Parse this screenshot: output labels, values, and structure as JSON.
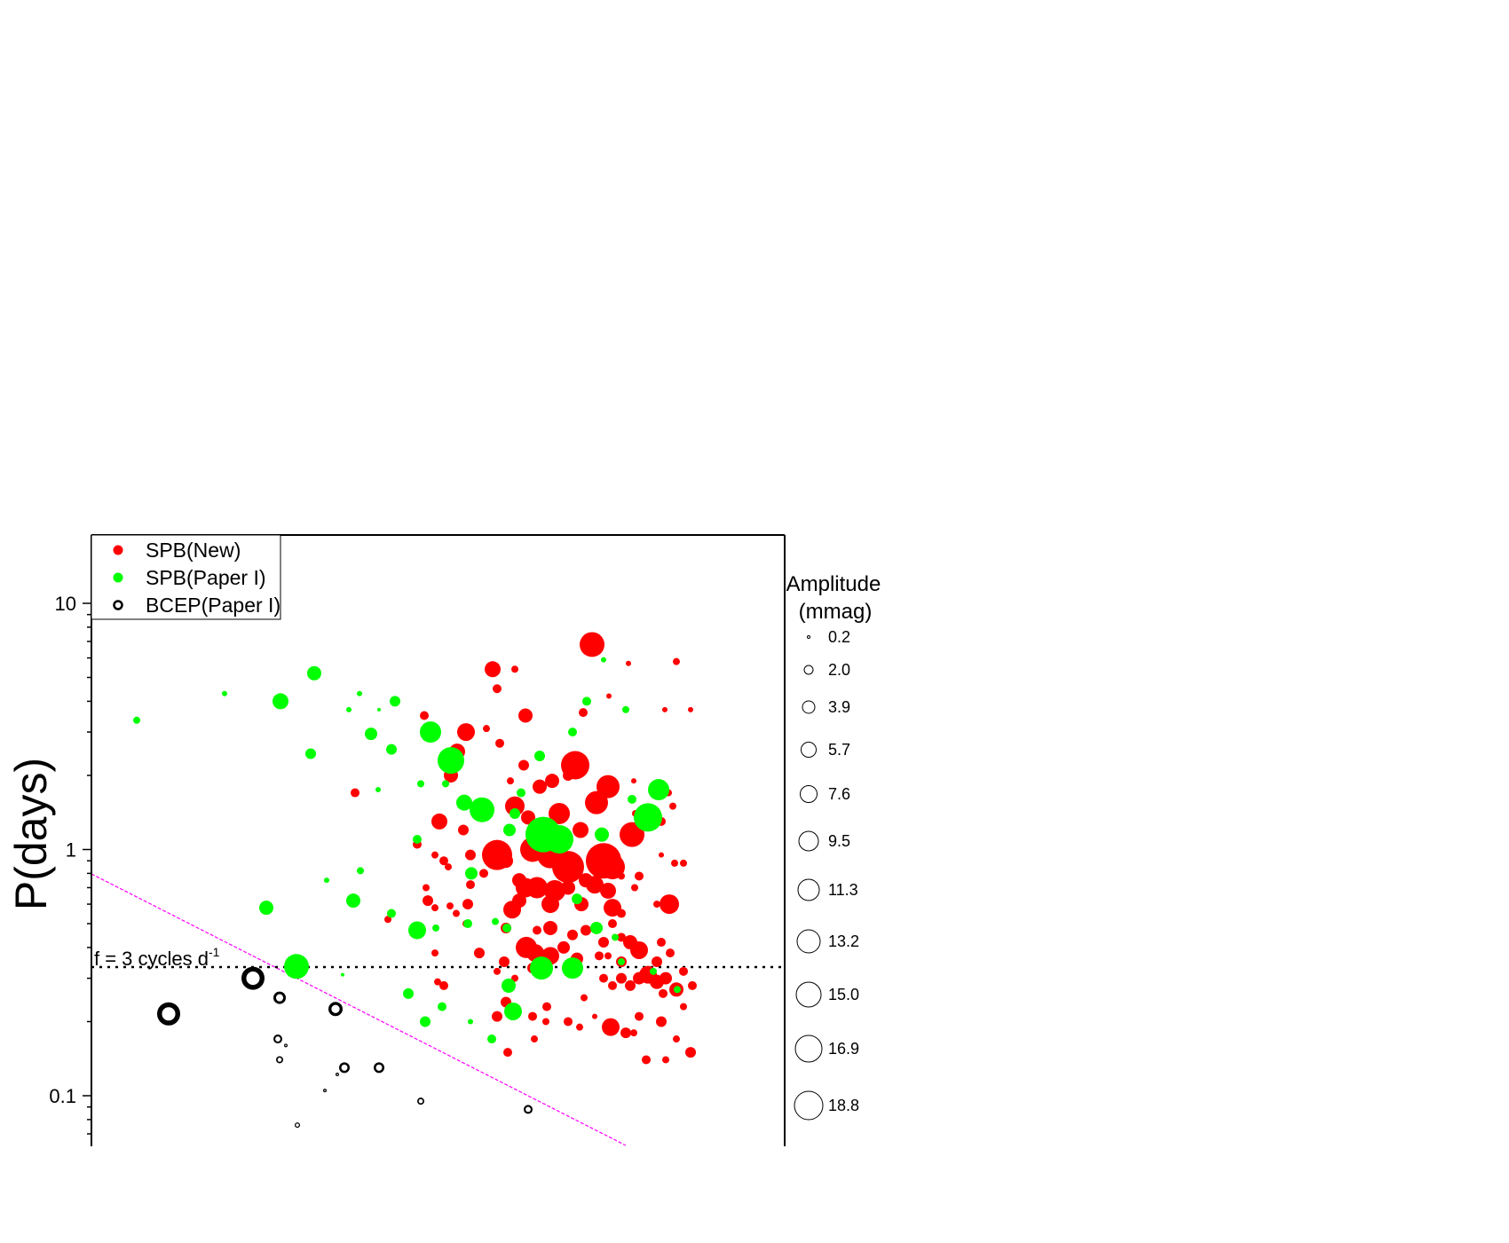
{
  "chart_data": {
    "type": "scatter",
    "title": "",
    "xlabel": "",
    "ylabel": "P(days)",
    "y_scale": "log",
    "ylim": [
      0.0637,
      20
    ],
    "y_ticks": [
      {
        "value": 10,
        "label": "10"
      },
      {
        "value": 1,
        "label": "1"
      },
      {
        "value": 0.1,
        "label": "0.1"
      }
    ],
    "grid": false,
    "legend_position": "top-left",
    "colors": {
      "spb_new": "#ff0000",
      "spb_paper1": "#00ff00",
      "bcep": "#000000",
      "cutoff_line": "#ff00ff"
    },
    "annotation": {
      "text": "f = 3 cycles d",
      "superscript": "-1",
      "line_period": 0.333
    },
    "size_legend": {
      "title_line1": "Amplitude",
      "title_line2": "(mmag)",
      "labels": [
        "0.2",
        "2.0",
        "3.9",
        "5.7",
        "7.6",
        "9.5",
        "11.3",
        "13.2",
        "15.0",
        "16.9",
        "18.8"
      ]
    },
    "series": [
      {
        "name": "SPB(New)",
        "style": "filled",
        "points": [
          [
            667,
            6.8,
            14
          ],
          [
            555,
            5.4,
            9
          ],
          [
            580,
            5.4,
            4
          ],
          [
            708,
            5.7,
            3
          ],
          [
            762,
            5.8,
            4
          ],
          [
            560,
            4.5,
            5
          ],
          [
            686,
            4.2,
            3
          ],
          [
            749,
            3.7,
            3
          ],
          [
            778,
            3.7,
            3
          ],
          [
            657,
            3.6,
            5
          ],
          [
            592,
            3.5,
            8
          ],
          [
            478,
            3.5,
            5
          ],
          [
            525,
            3.0,
            10
          ],
          [
            548,
            3.1,
            4
          ],
          [
            563,
            2.7,
            5
          ],
          [
            648,
            2.2,
            16
          ],
          [
            590,
            2.2,
            6
          ],
          [
            515,
            2.5,
            9
          ],
          [
            508,
            2.0,
            8
          ],
          [
            622,
            1.9,
            8
          ],
          [
            608,
            1.8,
            8
          ],
          [
            685,
            1.8,
            13
          ],
          [
            640,
            2.0,
            6
          ],
          [
            575,
            1.9,
            4
          ],
          [
            714,
            1.9,
            3
          ],
          [
            753,
            1.7,
            4
          ],
          [
            758,
            1.5,
            4
          ],
          [
            400,
            1.7,
            5
          ],
          [
            672,
            1.55,
            13
          ],
          [
            716,
            1.4,
            4
          ],
          [
            580,
            1.5,
            11
          ],
          [
            550,
            1.45,
            4
          ],
          [
            630,
            1.4,
            12
          ],
          [
            595,
            1.35,
            8
          ],
          [
            495,
            1.3,
            9
          ],
          [
            745,
            1.3,
            5
          ],
          [
            712,
            1.15,
            14
          ],
          [
            654,
            1.2,
            9
          ],
          [
            522,
            1.2,
            6
          ],
          [
            600,
            1.0,
            14
          ],
          [
            560,
            0.95,
            17
          ],
          [
            620,
            0.95,
            15
          ],
          [
            640,
            0.85,
            18
          ],
          [
            680,
            0.9,
            20
          ],
          [
            690,
            0.85,
            14
          ],
          [
            570,
            0.9,
            8
          ],
          [
            530,
            0.95,
            6
          ],
          [
            555,
            1.0,
            7
          ],
          [
            470,
            1.05,
            5
          ],
          [
            490,
            0.95,
            4
          ],
          [
            500,
            0.9,
            5
          ],
          [
            505,
            0.85,
            4
          ],
          [
            760,
            0.88,
            4
          ],
          [
            770,
            0.88,
            4
          ],
          [
            745,
            0.95,
            3
          ],
          [
            545,
            0.8,
            5
          ],
          [
            530,
            0.72,
            5
          ],
          [
            585,
            0.75,
            8
          ],
          [
            592,
            0.7,
            11
          ],
          [
            605,
            0.7,
            12
          ],
          [
            625,
            0.68,
            12
          ],
          [
            640,
            0.7,
            8
          ],
          [
            660,
            0.75,
            8
          ],
          [
            670,
            0.72,
            10
          ],
          [
            685,
            0.68,
            9
          ],
          [
            720,
            0.78,
            5
          ],
          [
            715,
            0.7,
            4
          ],
          [
            700,
            0.78,
            4
          ],
          [
            480,
            0.7,
            4
          ],
          [
            482,
            0.62,
            6
          ],
          [
            490,
            0.58,
            4
          ],
          [
            527,
            0.6,
            6
          ],
          [
            577,
            0.57,
            10
          ],
          [
            585,
            0.62,
            8
          ],
          [
            620,
            0.6,
            10
          ],
          [
            655,
            0.6,
            8
          ],
          [
            690,
            0.58,
            10
          ],
          [
            700,
            0.55,
            5
          ],
          [
            740,
            0.6,
            4
          ],
          [
            754,
            0.6,
            11
          ],
          [
            440,
            0.55,
            4
          ],
          [
            437,
            0.52,
            4
          ],
          [
            507,
            0.59,
            4
          ],
          [
            514,
            0.55,
            4
          ],
          [
            525,
            0.5,
            4
          ],
          [
            570,
            0.48,
            6
          ],
          [
            605,
            0.47,
            5
          ],
          [
            620,
            0.48,
            8
          ],
          [
            645,
            0.45,
            6
          ],
          [
            660,
            0.47,
            6
          ],
          [
            680,
            0.42,
            6
          ],
          [
            690,
            0.5,
            5
          ],
          [
            700,
            0.44,
            5
          ],
          [
            710,
            0.42,
            8
          ],
          [
            720,
            0.39,
            10
          ],
          [
            745,
            0.42,
            5
          ],
          [
            593,
            0.4,
            12
          ],
          [
            603,
            0.38,
            10
          ],
          [
            620,
            0.37,
            10
          ],
          [
            635,
            0.4,
            7
          ],
          [
            650,
            0.36,
            7
          ],
          [
            540,
            0.38,
            6
          ],
          [
            568,
            0.35,
            6
          ],
          [
            490,
            0.38,
            4
          ],
          [
            675,
            0.37,
            5
          ],
          [
            685,
            0.37,
            4
          ],
          [
            700,
            0.35,
            6
          ],
          [
            740,
            0.35,
            6
          ],
          [
            755,
            0.38,
            5
          ],
          [
            770,
            0.32,
            5
          ],
          [
            720,
            0.3,
            7
          ],
          [
            730,
            0.31,
            10
          ],
          [
            740,
            0.29,
            8
          ],
          [
            750,
            0.3,
            7
          ],
          [
            700,
            0.3,
            6
          ],
          [
            710,
            0.28,
            6
          ],
          [
            690,
            0.28,
            5
          ],
          [
            680,
            0.3,
            5
          ],
          [
            600,
            0.33,
            6
          ],
          [
            560,
            0.32,
            4
          ],
          [
            580,
            0.3,
            4
          ],
          [
            500,
            0.28,
            5
          ],
          [
            493,
            0.29,
            4
          ],
          [
            780,
            0.28,
            5
          ],
          [
            762,
            0.27,
            8
          ],
          [
            770,
            0.23,
            4
          ],
          [
            747,
            0.26,
            5
          ],
          [
            570,
            0.24,
            6
          ],
          [
            616,
            0.23,
            5
          ],
          [
            600,
            0.21,
            5
          ],
          [
            560,
            0.21,
            6
          ],
          [
            615,
            0.2,
            4
          ],
          [
            640,
            0.2,
            5
          ],
          [
            653,
            0.19,
            4
          ],
          [
            670,
            0.21,
            3
          ],
          [
            688,
            0.19,
            10
          ],
          [
            705,
            0.18,
            6
          ],
          [
            714,
            0.18,
            4
          ],
          [
            720,
            0.21,
            5
          ],
          [
            745,
            0.2,
            6
          ],
          [
            762,
            0.17,
            4
          ],
          [
            778,
            0.15,
            6
          ],
          [
            728,
            0.14,
            5
          ],
          [
            750,
            0.14,
            4
          ],
          [
            572,
            0.15,
            5
          ],
          [
            602,
            0.17,
            4
          ],
          [
            658,
            0.25,
            4
          ]
        ]
      },
      {
        "name": "SPB(Paper I)",
        "style": "filled",
        "points": [
          [
            154,
            3.35,
            4
          ],
          [
            253,
            4.3,
            3
          ],
          [
            354,
            5.2,
            8
          ],
          [
            316,
            4.0,
            9
          ],
          [
            405,
            4.3,
            3
          ],
          [
            393,
            3.7,
            3
          ],
          [
            427,
            3.7,
            2
          ],
          [
            445,
            4.0,
            6
          ],
          [
            418,
            2.95,
            7
          ],
          [
            441,
            2.55,
            6
          ],
          [
            350,
            2.45,
            6
          ],
          [
            485,
            3.0,
            12
          ],
          [
            508,
            2.3,
            15
          ],
          [
            474,
            1.85,
            4
          ],
          [
            426,
            1.75,
            3
          ],
          [
            502,
            1.85,
            4
          ],
          [
            523,
            1.55,
            9
          ],
          [
            543,
            1.45,
            14
          ],
          [
            580,
            1.4,
            6
          ],
          [
            608,
            2.4,
            6
          ],
          [
            612,
            1.15,
            20
          ],
          [
            630,
            1.1,
            16
          ],
          [
            574,
            1.2,
            7
          ],
          [
            587,
            1.7,
            5
          ],
          [
            661,
            4.0,
            5
          ],
          [
            645,
            3.0,
            5
          ],
          [
            680,
            5.9,
            3
          ],
          [
            705,
            3.7,
            4
          ],
          [
            742,
            1.75,
            12
          ],
          [
            730,
            1.35,
            16
          ],
          [
            712,
            1.6,
            5
          ],
          [
            470,
            1.1,
            5
          ],
          [
            678,
            1.15,
            8
          ],
          [
            368,
            0.75,
            3
          ],
          [
            406,
            0.82,
            4
          ],
          [
            531,
            0.8,
            7
          ],
          [
            300,
            0.58,
            8
          ],
          [
            398,
            0.62,
            8
          ],
          [
            441,
            0.55,
            5
          ],
          [
            470,
            0.47,
            10
          ],
          [
            491,
            0.48,
            4
          ],
          [
            527,
            0.5,
            5
          ],
          [
            558,
            0.51,
            4
          ],
          [
            571,
            0.48,
            5
          ],
          [
            650,
            0.63,
            6
          ],
          [
            672,
            0.48,
            7
          ],
          [
            693,
            0.44,
            4
          ],
          [
            334,
            0.335,
            14
          ],
          [
            573,
            0.28,
            8
          ],
          [
            610,
            0.33,
            13
          ],
          [
            645,
            0.33,
            12
          ],
          [
            700,
            0.35,
            4
          ],
          [
            736,
            0.32,
            4
          ],
          [
            763,
            0.27,
            4
          ],
          [
            460,
            0.26,
            6
          ],
          [
            498,
            0.23,
            5
          ],
          [
            578,
            0.22,
            10
          ],
          [
            530,
            0.2,
            3
          ],
          [
            554,
            0.17,
            5
          ],
          [
            479,
            0.2,
            6
          ],
          [
            386,
            0.31,
            2
          ]
        ]
      },
      {
        "name": "BCEP(Paper I)",
        "style": "ring",
        "points": [
          [
            190,
            0.215,
            13
          ],
          [
            285,
            0.3,
            13
          ],
          [
            315,
            0.25,
            7
          ],
          [
            378,
            0.225,
            8
          ],
          [
            313,
            0.17,
            5
          ],
          [
            315,
            0.14,
            4
          ],
          [
            322,
            0.16,
            2
          ],
          [
            388,
            0.13,
            6
          ],
          [
            427,
            0.13,
            6
          ],
          [
            380,
            0.122,
            2
          ],
          [
            366,
            0.105,
            2
          ],
          [
            474,
            0.095,
            4
          ],
          [
            595,
            0.088,
            5
          ],
          [
            335,
            0.076,
            3
          ]
        ]
      }
    ]
  }
}
